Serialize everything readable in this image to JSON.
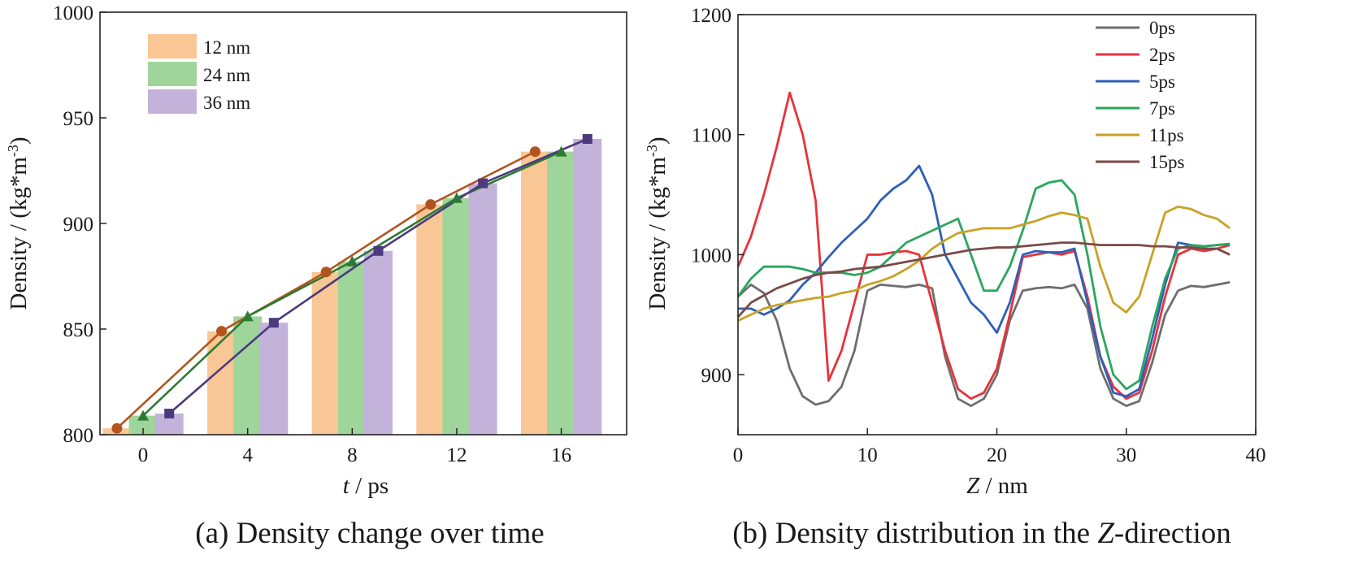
{
  "chart_data": [
    {
      "id": "a",
      "type": "bar",
      "caption": "(a) Density change over time",
      "xlabel_italic": "t",
      "xlabel_rest": " / ps",
      "ylabel": "Density / (kg*m",
      "ylabel_sup": "-3",
      "ylabel_close": ")",
      "ylim": [
        800,
        1000
      ],
      "yticks": [
        800,
        850,
        900,
        950,
        1000
      ],
      "categories": [
        "0",
        "4",
        "8",
        "12",
        "16"
      ],
      "series": [
        {
          "name": "12 nm",
          "bar_color": "#f9c795",
          "line_color": "#b3541e",
          "marker": "circle",
          "values": [
            803,
            849,
            877,
            909,
            934
          ],
          "point_x": [
            -1,
            3,
            7,
            11,
            15
          ]
        },
        {
          "name": "24 nm",
          "bar_color": "#9fd49b",
          "line_color": "#2d7a32",
          "marker": "triangle",
          "values": [
            809,
            856,
            882,
            912,
            934
          ],
          "point_x": [
            0,
            4,
            8,
            12,
            16
          ]
        },
        {
          "name": "36 nm",
          "bar_color": "#c3b2da",
          "line_color": "#4b3a7e",
          "marker": "square",
          "values": [
            810,
            853,
            887,
            919,
            940
          ],
          "point_x": [
            1,
            5,
            9,
            13,
            17
          ]
        }
      ]
    },
    {
      "id": "b",
      "type": "line",
      "caption_pre": "(b) Density distribution in the ",
      "caption_italic": "Z",
      "caption_post": "-direction",
      "xlabel_italic": "Z",
      "xlabel_rest": " / nm",
      "ylabel": "Density / (kg*m",
      "ylabel_sup": "-3",
      "ylabel_close": ")",
      "xlim": [
        0,
        40
      ],
      "ylim": [
        850,
        1200
      ],
      "xticks": [
        0,
        10,
        20,
        30,
        40
      ],
      "yticks": [
        900,
        1000,
        1100,
        1200
      ],
      "x": [
        0,
        1,
        2,
        3,
        4,
        5,
        6,
        7,
        8,
        9,
        10,
        11,
        12,
        13,
        14,
        15,
        16,
        17,
        18,
        19,
        20,
        21,
        22,
        23,
        24,
        25,
        26,
        27,
        28,
        29,
        30,
        31,
        32,
        33,
        34,
        35,
        36,
        37,
        38
      ],
      "series": [
        {
          "name": "0ps",
          "color": "#6e6e6e",
          "values": [
            965,
            975,
            968,
            945,
            905,
            882,
            875,
            878,
            890,
            920,
            970,
            975,
            974,
            973,
            975,
            972,
            915,
            880,
            874,
            880,
            900,
            945,
            970,
            972,
            973,
            972,
            975,
            955,
            905,
            880,
            874,
            878,
            910,
            950,
            970,
            974,
            973,
            975,
            977
          ]
        },
        {
          "name": "2ps",
          "color": "#e8323a",
          "values": [
            990,
            1015,
            1050,
            1090,
            1135,
            1100,
            1045,
            895,
            920,
            960,
            1000,
            1000,
            1002,
            1003,
            1000,
            960,
            920,
            888,
            880,
            885,
            905,
            950,
            998,
            1000,
            1002,
            1000,
            1003,
            965,
            915,
            890,
            880,
            885,
            920,
            965,
            1000,
            1005,
            1003,
            1005,
            1008
          ]
        },
        {
          "name": "5ps",
          "color": "#2e5fb8",
          "values": [
            955,
            955,
            950,
            955,
            962,
            975,
            985,
            998,
            1010,
            1020,
            1030,
            1045,
            1055,
            1062,
            1074,
            1050,
            1000,
            980,
            960,
            950,
            935,
            960,
            1000,
            1003,
            1002,
            1002,
            1005,
            960,
            915,
            885,
            882,
            888,
            930,
            975,
            1010,
            1008,
            1007,
            1008,
            1009
          ]
        },
        {
          "name": "7ps",
          "color": "#2aa65e",
          "values": [
            965,
            980,
            990,
            990,
            990,
            988,
            985,
            985,
            985,
            983,
            985,
            990,
            1000,
            1010,
            1015,
            1020,
            1025,
            1030,
            1000,
            970,
            970,
            990,
            1020,
            1055,
            1060,
            1062,
            1050,
            1000,
            940,
            900,
            888,
            895,
            940,
            980,
            1005,
            1008,
            1007,
            1008,
            1009
          ]
        },
        {
          "name": "11ps",
          "color": "#c8a227",
          "values": [
            945,
            950,
            955,
            958,
            960,
            962,
            964,
            965,
            968,
            970,
            975,
            978,
            982,
            988,
            995,
            1005,
            1012,
            1018,
            1020,
            1022,
            1022,
            1022,
            1025,
            1028,
            1032,
            1035,
            1033,
            1030,
            990,
            960,
            952,
            965,
            1000,
            1035,
            1040,
            1038,
            1033,
            1030,
            1022
          ]
        },
        {
          "name": "15ps",
          "color": "#7a4a48",
          "values": [
            948,
            960,
            966,
            972,
            976,
            980,
            983,
            985,
            986,
            988,
            989,
            990,
            992,
            994,
            996,
            998,
            1000,
            1002,
            1004,
            1005,
            1006,
            1006,
            1007,
            1008,
            1009,
            1010,
            1010,
            1009,
            1008,
            1008,
            1008,
            1008,
            1007,
            1007,
            1006,
            1006,
            1005,
            1005,
            1000
          ]
        }
      ]
    }
  ]
}
